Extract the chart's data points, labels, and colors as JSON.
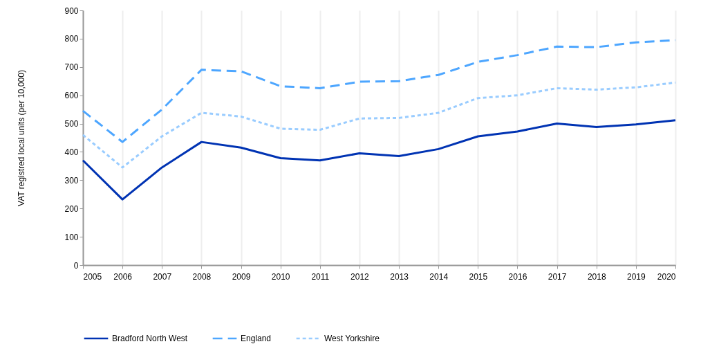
{
  "chart_data": {
    "type": "line",
    "ylabel": "VAT registred local units (per 10,000)",
    "x": [
      2005,
      2006,
      2007,
      2008,
      2009,
      2010,
      2011,
      2012,
      2013,
      2014,
      2015,
      2016,
      2017,
      2018,
      2019,
      2020
    ],
    "xlim": [
      2005,
      2020
    ],
    "xticks": [
      2005,
      2006,
      2007,
      2008,
      2009,
      2010,
      2011,
      2012,
      2013,
      2014,
      2015,
      2016,
      2017,
      2018,
      2019,
      2020
    ],
    "ylim": [
      0,
      900
    ],
    "yticks": [
      0,
      100,
      200,
      300,
      400,
      500,
      600,
      700,
      800,
      900
    ],
    "grid": "x",
    "legend": "bottom",
    "marker": "none",
    "series": [
      {
        "name": "Bradford North West",
        "color": "#0033b3",
        "line_style": "solid",
        "values": [
          370,
          232,
          345,
          435,
          415,
          378,
          370,
          395,
          385,
          410,
          455,
          472,
          500,
          488,
          497,
          512
        ]
      },
      {
        "name": "England",
        "color": "#4da6ff",
        "line_style": "dashed",
        "values": [
          545,
          435,
          550,
          690,
          685,
          632,
          625,
          648,
          650,
          672,
          718,
          742,
          772,
          770,
          787,
          795
        ]
      },
      {
        "name": "West Yorkshire",
        "color": "#99ccff",
        "line_style": "dotted",
        "values": [
          460,
          345,
          455,
          538,
          525,
          482,
          478,
          518,
          520,
          538,
          590,
          600,
          625,
          620,
          628,
          645
        ]
      }
    ]
  }
}
